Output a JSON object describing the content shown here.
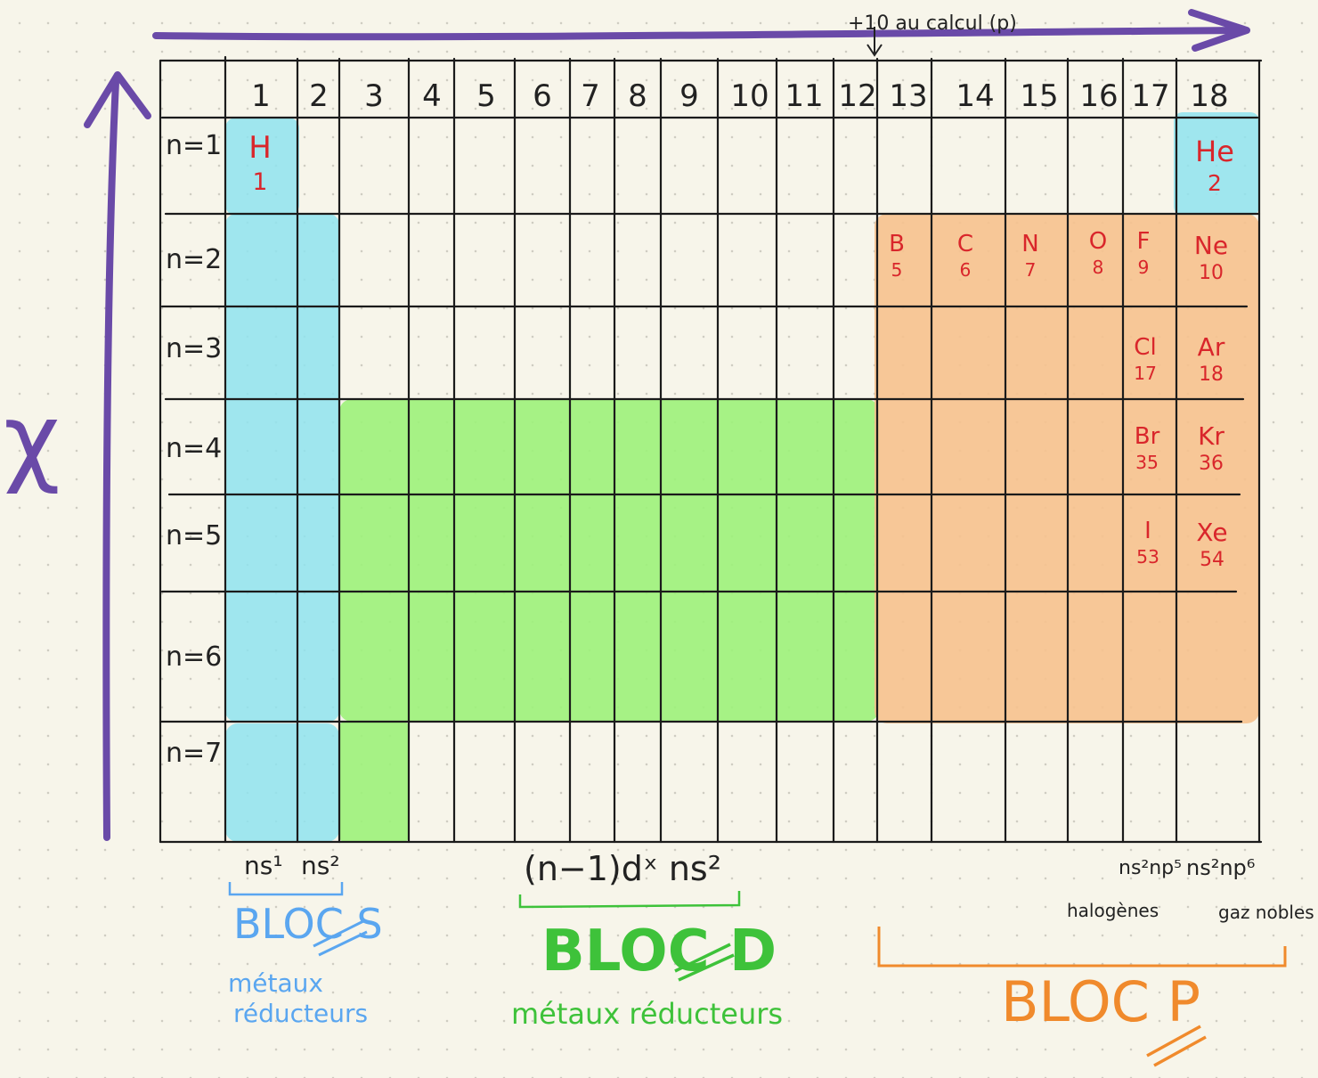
{
  "top_arrow_note": "+10 au calcul (p)",
  "left_axis_label": "χ",
  "groups": [
    "1",
    "2",
    "3",
    "4",
    "5",
    "6",
    "7",
    "8",
    "9",
    "10",
    "11",
    "12",
    "13",
    "14",
    "15",
    "16",
    "17",
    "18"
  ],
  "periods": [
    "n=1",
    "n=2",
    "n=3",
    "n=4",
    "n=5",
    "n=6",
    "n=7"
  ],
  "elements": [
    {
      "symbol": "H",
      "number": "1"
    },
    {
      "symbol": "He",
      "number": "2"
    },
    {
      "symbol": "B",
      "number": "5"
    },
    {
      "symbol": "C",
      "number": "6"
    },
    {
      "symbol": "N",
      "number": "7"
    },
    {
      "symbol": "O",
      "number": "8"
    },
    {
      "symbol": "F",
      "number": "9"
    },
    {
      "symbol": "Ne",
      "number": "10"
    },
    {
      "symbol": "Cl",
      "number": "17"
    },
    {
      "symbol": "Ar",
      "number": "18"
    },
    {
      "symbol": "Br",
      "number": "35"
    },
    {
      "symbol": "Kr",
      "number": "36"
    },
    {
      "symbol": "I",
      "number": "53"
    },
    {
      "symbol": "Xe",
      "number": "54"
    }
  ],
  "annotations": {
    "ns1": "ns¹",
    "ns2": "ns²",
    "d_config": "(n−1)dˣ ns²",
    "halogen_config": "ns²np⁵",
    "noble_config": "ns²np⁶",
    "halogenes": "halogènes",
    "gaz_nobles": "gaz nobles"
  },
  "blocks": {
    "s": {
      "title": "BLOC S",
      "subtitle_line1": "métaux",
      "subtitle_line2": "réducteurs",
      "color": "#5aa6f0"
    },
    "d": {
      "title": "BLOC D",
      "subtitle": "métaux réducteurs",
      "color": "#3ec23a"
    },
    "p": {
      "title": "BLOC P",
      "color": "#f08a2c"
    }
  },
  "colors": {
    "arrow": "#6a4aa8",
    "s_fill": "#8fe3ef",
    "d_fill": "#9cf27a",
    "p_fill": "#f6c28e",
    "element_text": "#d9262b"
  }
}
